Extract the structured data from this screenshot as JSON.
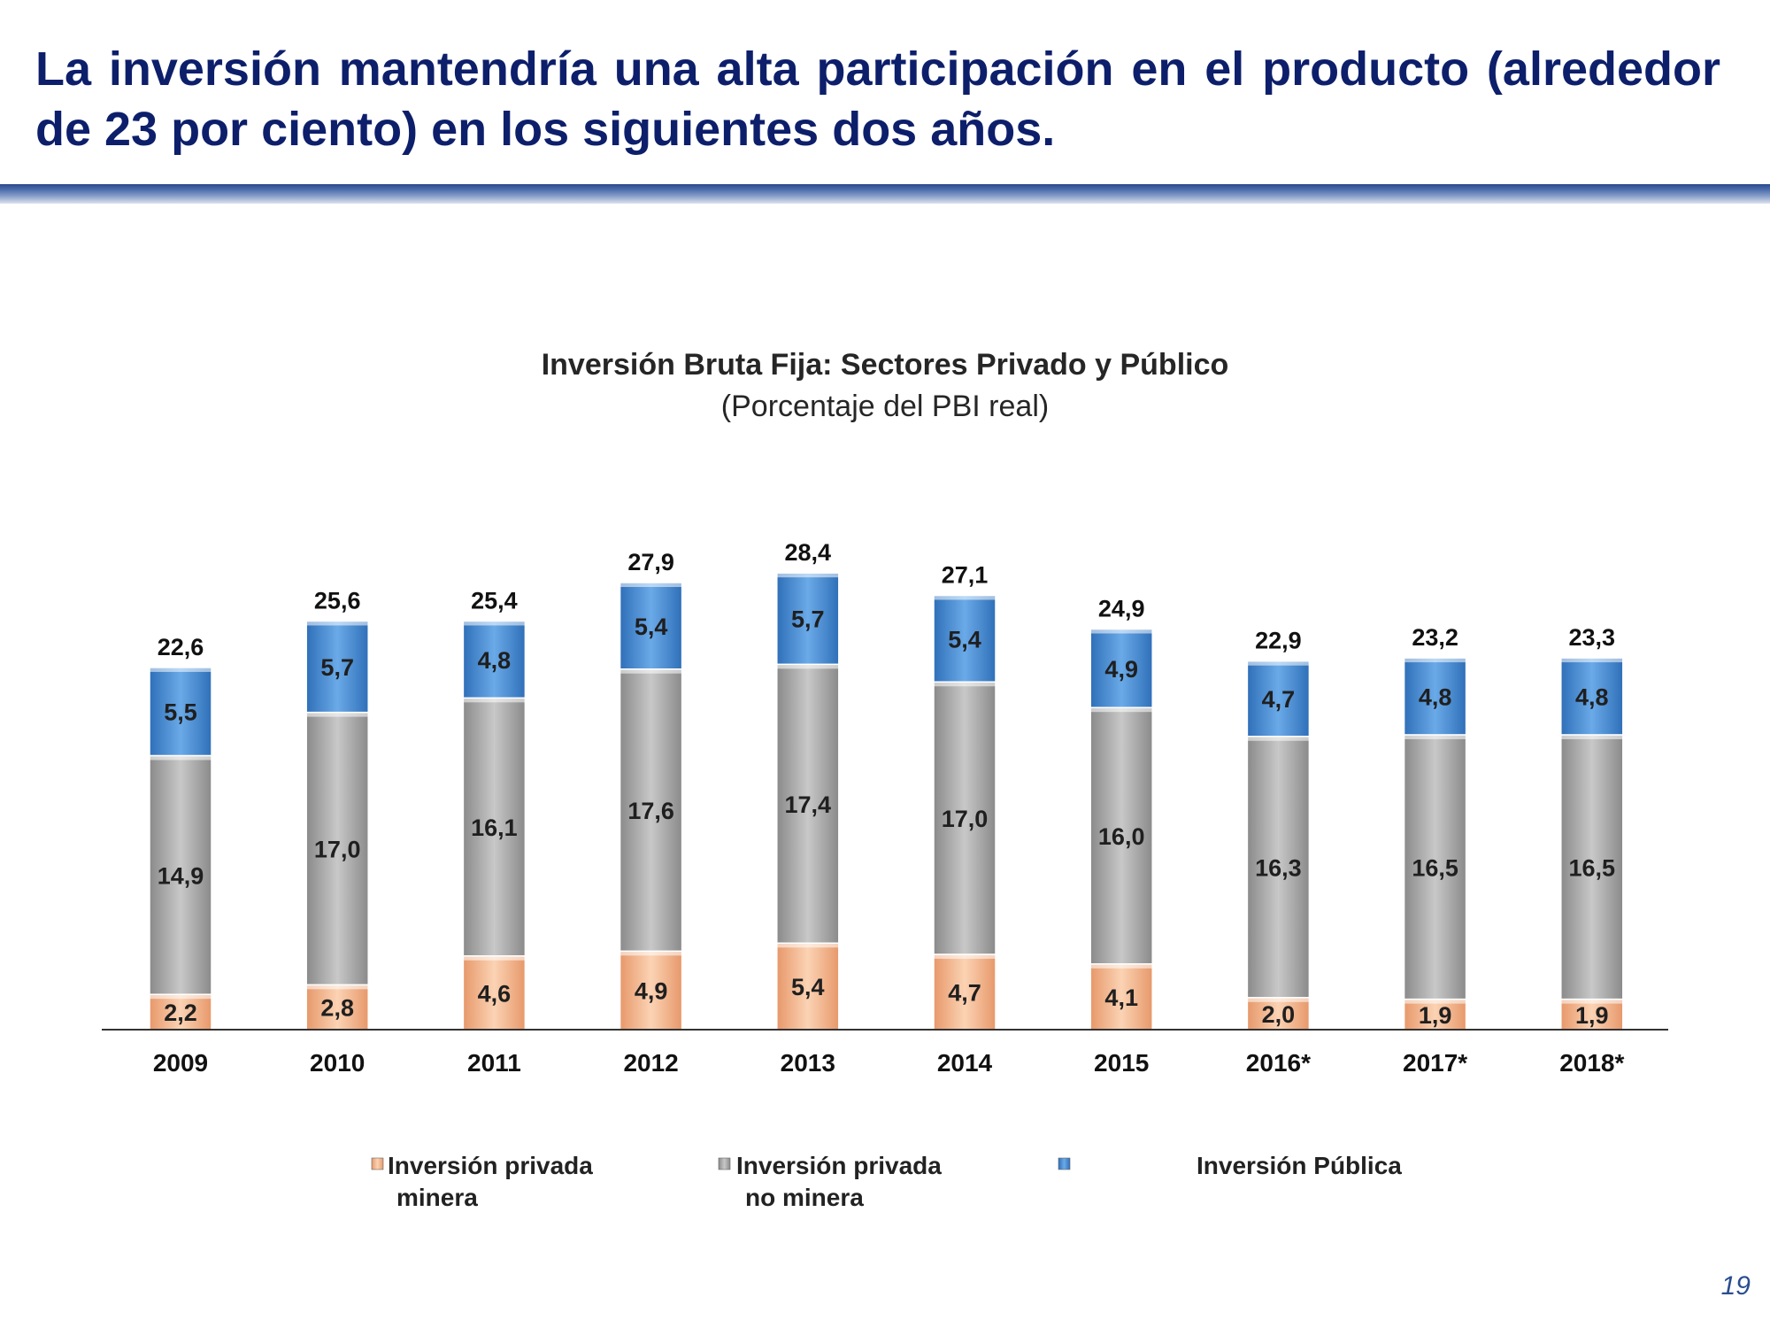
{
  "slide": {
    "title": "La inversión mantendría una alta participación en el producto (alrededor de 23 por ciento) en los siguientes dos años.",
    "page_number": "19"
  },
  "chart_data": {
    "type": "bar",
    "stacked": true,
    "title": "Inversión Bruta Fija: Sectores Privado y Público",
    "subtitle": "(Porcentaje del PBI real)",
    "categories": [
      "2009",
      "2010",
      "2011",
      "2012",
      "2013",
      "2014",
      "2015",
      "2016*",
      "2017*",
      "2018*"
    ],
    "series": [
      {
        "name": "Inversión privada minera",
        "legend_lines": [
          "Inversión privada",
          "minera"
        ],
        "color": "#f4b183",
        "values": [
          2.2,
          2.8,
          4.6,
          4.9,
          5.4,
          4.7,
          4.1,
          2.0,
          1.9,
          1.9
        ],
        "labels": [
          "2,2",
          "2,8",
          "4,6",
          "4,9",
          "5,4",
          "4,7",
          "4,1",
          "2,0",
          "1,9",
          "1,9"
        ]
      },
      {
        "name": "Inversión privada no minera",
        "legend_lines": [
          "Inversión privada",
          "no minera"
        ],
        "color": "#a6a6a6",
        "values": [
          14.9,
          17.0,
          16.1,
          17.6,
          17.4,
          17.0,
          16.0,
          16.3,
          16.5,
          16.5
        ],
        "labels": [
          "14,9",
          "17,0",
          "16,1",
          "17,6",
          "17,4",
          "17,0",
          "16,0",
          "16,3",
          "16,5",
          "16,5"
        ]
      },
      {
        "name": "Inversión Pública",
        "legend_lines": [
          "Inversión Pública"
        ],
        "color": "#4a90d9",
        "values": [
          5.5,
          5.7,
          4.8,
          5.4,
          5.7,
          5.4,
          4.9,
          4.7,
          4.8,
          4.8
        ],
        "labels": [
          "5,5",
          "5,7",
          "4,8",
          "5,4",
          "5,7",
          "5,4",
          "4,9",
          "4,7",
          "4,8",
          "4,8"
        ]
      }
    ],
    "totals": [
      22.6,
      25.6,
      25.4,
      27.9,
      28.4,
      27.1,
      24.9,
      22.9,
      23.2,
      23.3
    ],
    "total_labels": [
      "22,6",
      "25,6",
      "25,4",
      "27,9",
      "28,4",
      "27,1",
      "24,9",
      "22,9",
      "23,2",
      "23,3"
    ],
    "ylim": [
      0,
      30
    ],
    "grid": false,
    "legend_position": "bottom"
  }
}
